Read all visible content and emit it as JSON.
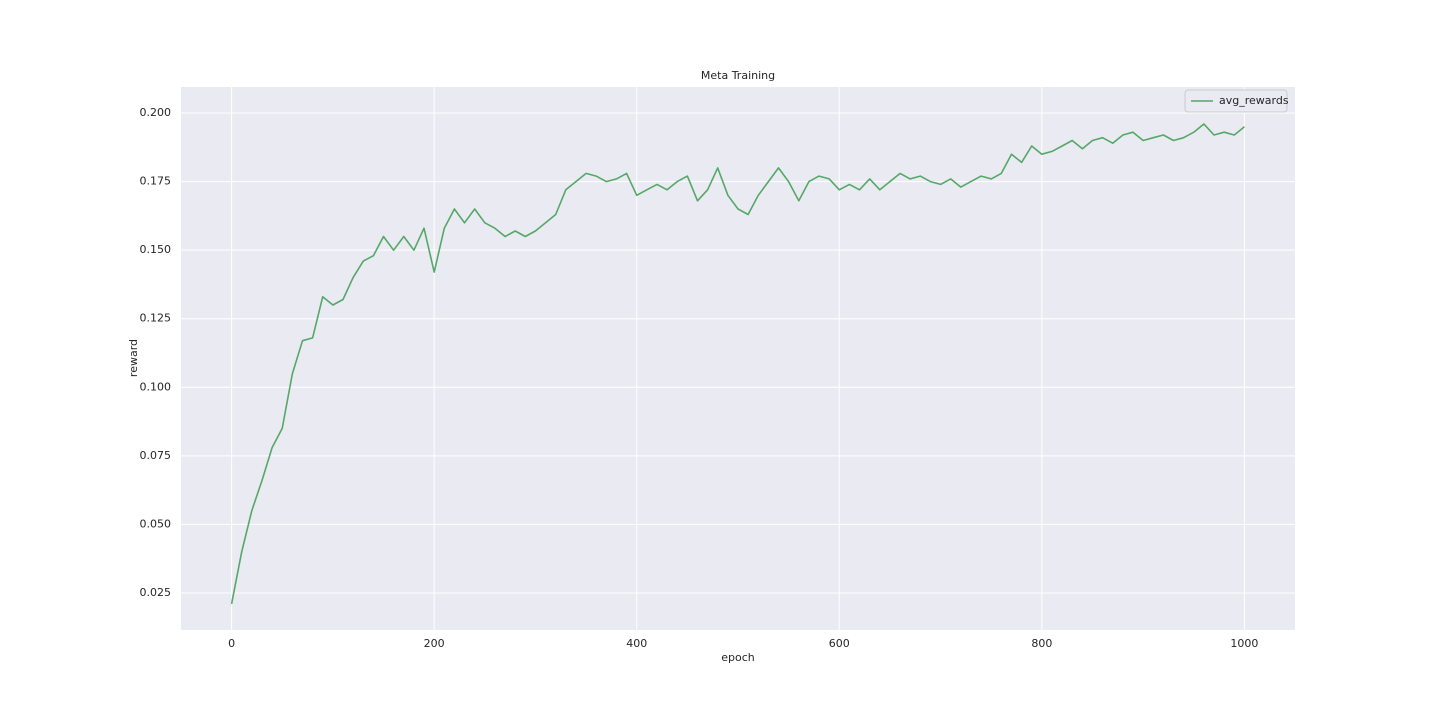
{
  "chart_data": {
    "type": "line",
    "title": "Meta Training",
    "xlabel": "epoch",
    "ylabel": "reward",
    "x": [
      0,
      10,
      20,
      30,
      40,
      50,
      60,
      70,
      80,
      90,
      100,
      110,
      120,
      130,
      140,
      150,
      160,
      170,
      180,
      190,
      200,
      210,
      220,
      230,
      240,
      250,
      260,
      270,
      280,
      290,
      300,
      310,
      320,
      330,
      340,
      350,
      360,
      370,
      380,
      390,
      400,
      410,
      420,
      430,
      440,
      450,
      460,
      470,
      480,
      490,
      500,
      510,
      520,
      530,
      540,
      550,
      560,
      570,
      580,
      590,
      600,
      610,
      620,
      630,
      640,
      650,
      660,
      670,
      680,
      690,
      700,
      710,
      720,
      730,
      740,
      750,
      760,
      770,
      780,
      790,
      800,
      810,
      820,
      830,
      840,
      850,
      860,
      870,
      880,
      890,
      900,
      910,
      920,
      930,
      940,
      950,
      960,
      970,
      980,
      990,
      1000
    ],
    "series": [
      {
        "name": "avg_rewards",
        "color": "#55a868",
        "values": [
          0.021,
          0.04,
          0.055,
          0.066,
          0.078,
          0.085,
          0.105,
          0.117,
          0.118,
          0.133,
          0.13,
          0.132,
          0.14,
          0.146,
          0.148,
          0.155,
          0.15,
          0.155,
          0.15,
          0.158,
          0.142,
          0.158,
          0.165,
          0.16,
          0.165,
          0.16,
          0.158,
          0.155,
          0.157,
          0.155,
          0.157,
          0.16,
          0.163,
          0.172,
          0.175,
          0.178,
          0.177,
          0.175,
          0.176,
          0.178,
          0.17,
          0.172,
          0.174,
          0.172,
          0.175,
          0.177,
          0.168,
          0.172,
          0.18,
          0.17,
          0.165,
          0.163,
          0.17,
          0.175,
          0.18,
          0.175,
          0.168,
          0.175,
          0.177,
          0.176,
          0.172,
          0.174,
          0.172,
          0.176,
          0.172,
          0.175,
          0.178,
          0.176,
          0.177,
          0.175,
          0.174,
          0.176,
          0.173,
          0.175,
          0.177,
          0.176,
          0.178,
          0.185,
          0.182,
          0.188,
          0.185,
          0.186,
          0.188,
          0.19,
          0.187,
          0.19,
          0.191,
          0.189,
          0.192,
          0.193,
          0.19,
          0.191,
          0.192,
          0.19,
          0.191,
          0.193,
          0.196,
          0.192,
          0.193,
          0.192,
          0.195
        ]
      }
    ],
    "xlim": [
      -49.95,
      1049.95
    ],
    "xticks": [
      0,
      200,
      400,
      600,
      800,
      1000
    ],
    "ylim": [
      0.0115,
      0.2095
    ],
    "yticks": [
      0.025,
      {
        "value": 0.05,
        "label": "0.050"
      },
      0.075,
      {
        "value": 0.1,
        "label": "0.100"
      },
      0.125,
      {
        "value": 0.15,
        "label": "0.150"
      },
      0.175,
      {
        "value": 0.2,
        "label": "0.200"
      }
    ],
    "grid": true,
    "legend": "upper right"
  }
}
